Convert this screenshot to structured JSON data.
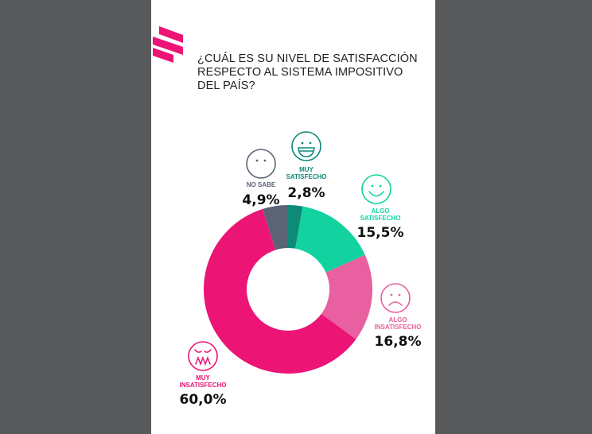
{
  "page": {
    "title_lines": [
      "¿CUÁL ES SU NIVEL DE SATISFACCIÓN",
      "RESPECTO AL SISTEMA IMPOSITIVO",
      "DEL PAÍS?"
    ]
  },
  "chart_data": {
    "type": "pie",
    "donut": true,
    "title": "¿CUÁL ES SU NIVEL DE SATISFACCIÓN RESPECTO AL SISTEMA IMPOSITIVO DEL PAÍS?",
    "slices": [
      {
        "label_lines": [
          "MUY",
          "SATISFECHO"
        ],
        "value": 2.8,
        "value_label": "2,8%",
        "color": "#0e8a78",
        "icon": "very-happy-face-icon"
      },
      {
        "label_lines": [
          "ALGO",
          "SATISFECHO"
        ],
        "value": 15.5,
        "value_label": "15,5%",
        "color": "#12d3a0",
        "icon": "smiley-face-icon"
      },
      {
        "label_lines": [
          "ALGO",
          "INSATISFECHO"
        ],
        "value": 16.8,
        "value_label": "16,8%",
        "color": "#e8609f",
        "icon": "sad-face-icon"
      },
      {
        "label_lines": [
          "MUY",
          "INSATISFECHO"
        ],
        "value": 60.0,
        "value_label": "60,0%",
        "color": "#ec1475",
        "icon": "angry-face-icon"
      },
      {
        "label_lines": [
          "NO SABE"
        ],
        "value": 4.9,
        "value_label": "4,9%",
        "color": "#5c6375",
        "icon": "neutral-face-icon"
      }
    ]
  }
}
